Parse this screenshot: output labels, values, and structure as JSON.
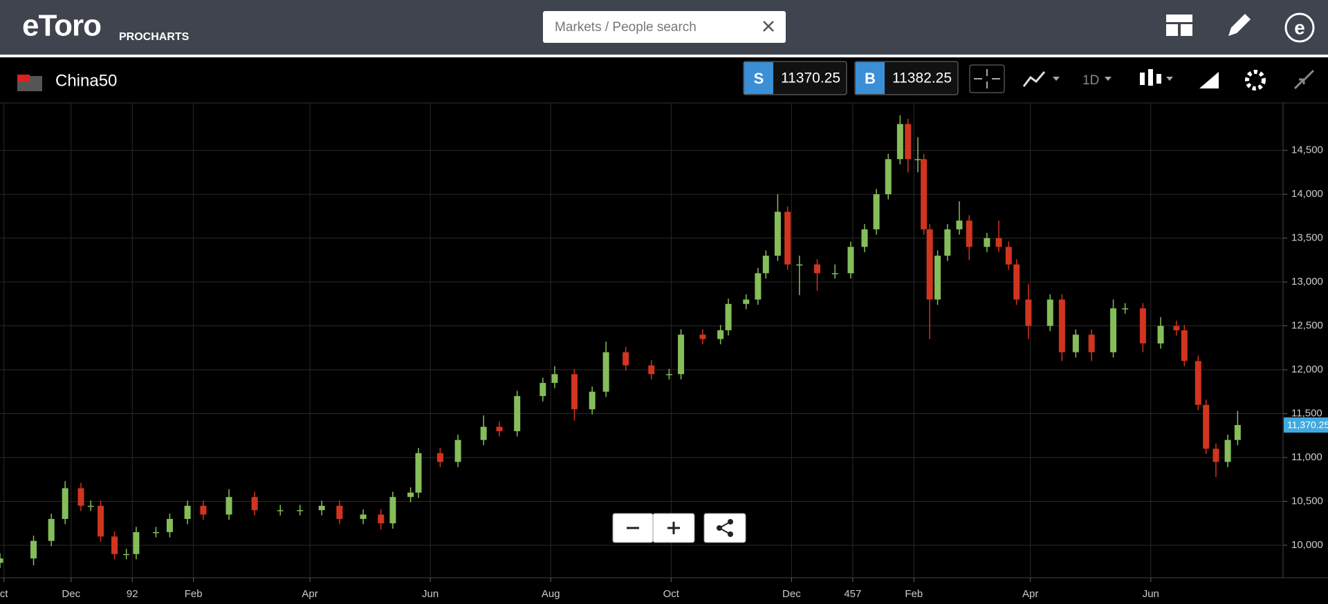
{
  "header": {
    "logo": "eToro",
    "product": "PROCHARTS",
    "search_placeholder": "Markets / People search"
  },
  "toolbar": {
    "instrument": "China50",
    "sell_label": "S",
    "sell_price": "11370.25",
    "buy_label": "B",
    "buy_price": "11382.25",
    "interval": "1D"
  },
  "chart_data": {
    "type": "candlestick",
    "x": [
      25,
      42,
      51,
      58,
      66,
      71,
      76,
      83,
      89,
      94,
      104,
      111,
      120,
      128,
      141,
      154,
      167,
      177,
      188,
      197,
      209,
      218,
      224,
      233,
      237,
      248,
      257,
      270,
      278,
      287,
      300,
      306,
      316,
      325,
      332,
      342,
      355,
      364,
      370,
      381,
      390,
      394,
      403,
      409,
      413,
      419,
      424,
      430,
      439,
      448,
      456,
      463,
      469,
      475,
      481,
      485,
      490,
      493,
      496,
      500,
      505,
      511,
      516,
      525,
      531,
      536,
      540,
      546,
      557,
      563,
      570,
      578,
      589,
      595,
      604,
      613,
      621,
      625,
      632,
      636,
      641,
      647,
      652
    ],
    "open": [
      9800,
      9850,
      10050,
      10300,
      10650,
      10450,
      10450,
      10100,
      9900,
      9900,
      10150,
      10150,
      10300,
      10450,
      10350,
      10550,
      10400,
      10400,
      10400,
      10450,
      10300,
      10350,
      10250,
      10550,
      10600,
      11050,
      10950,
      11200,
      11350,
      11300,
      11700,
      11850,
      11950,
      11550,
      11750,
      12200,
      12050,
      11950,
      11950,
      12400,
      12350,
      12450,
      12750,
      12800,
      13100,
      13300,
      13800,
      13200,
      13200,
      13100,
      13100,
      13400,
      13600,
      14000,
      14400,
      14800,
      14400,
      14400,
      13600,
      12800,
      13300,
      13600,
      13700,
      13400,
      13500,
      13400,
      13200,
      12800,
      12500,
      12800,
      12200,
      12400,
      12200,
      12700,
      12700,
      12300,
      12500,
      12450,
      12100,
      11600,
      11100,
      10950,
      11200
    ],
    "high": [
      9910,
      10110,
      10360,
      10730,
      10710,
      10510,
      10510,
      10160,
      9960,
      10210,
      10210,
      10360,
      10510,
      10510,
      10640,
      10610,
      10460,
      10460,
      10510,
      10510,
      10410,
      10410,
      10610,
      10660,
      11110,
      11110,
      11260,
      11480,
      11410,
      11760,
      11910,
      12040,
      12010,
      11810,
      12320,
      12260,
      12110,
      12010,
      12460,
      12460,
      12510,
      12810,
      12860,
      13160,
      13360,
      14000,
      13860,
      13300,
      13260,
      13200,
      13460,
      13660,
      14060,
      14460,
      14900,
      14860,
      14650,
      14460,
      13660,
      13360,
      13660,
      13920,
      13760,
      13560,
      13700,
      13460,
      13260,
      12980,
      12860,
      12860,
      12460,
      12460,
      12800,
      12760,
      12760,
      12600,
      12560,
      12510,
      12160,
      11660,
      11160,
      11260,
      11530
    ],
    "low": [
      9740,
      9770,
      9990,
      10240,
      10390,
      10390,
      10040,
      9840,
      9840,
      9840,
      10090,
      10090,
      10240,
      10290,
      10290,
      10340,
      10340,
      10340,
      10340,
      10240,
      10240,
      10180,
      10190,
      10490,
      10540,
      10890,
      10890,
      11140,
      11240,
      11240,
      11640,
      11790,
      11420,
      11490,
      11690,
      11990,
      11890,
      11890,
      11890,
      12290,
      12290,
      12390,
      12690,
      12740,
      13040,
      13240,
      13140,
      12850,
      12900,
      13040,
      13040,
      13340,
      13540,
      13940,
      14340,
      14250,
      14250,
      13540,
      12350,
      12740,
      13240,
      13540,
      13250,
      13340,
      13340,
      13140,
      12740,
      12350,
      12440,
      12100,
      12140,
      12100,
      12140,
      12640,
      12200,
      12240,
      12390,
      12040,
      11540,
      11040,
      10780,
      10890,
      11140
    ],
    "close": [
      9850,
      10050,
      10300,
      10650,
      10450,
      10450,
      10100,
      9900,
      9900,
      10150,
      10150,
      10300,
      10450,
      10350,
      10550,
      10400,
      10400,
      10400,
      10450,
      10300,
      10350,
      10250,
      10550,
      10600,
      11050,
      10950,
      11200,
      11350,
      11300,
      11700,
      11850,
      11950,
      11550,
      11750,
      12200,
      12050,
      11950,
      11950,
      12400,
      12350,
      12450,
      12750,
      12800,
      13100,
      13300,
      13800,
      13200,
      13200,
      13100,
      13100,
      13400,
      13600,
      14000,
      14400,
      14800,
      14400,
      14400,
      13600,
      12800,
      13300,
      13600,
      13700,
      13400,
      13500,
      13400,
      13200,
      12800,
      12500,
      12800,
      12200,
      12400,
      12200,
      12700,
      12700,
      12300,
      12500,
      12450,
      12100,
      11600,
      11100,
      10950,
      11200,
      11370
    ],
    "up_color": "#86bd5b",
    "down_color": "#d1341f",
    "xlim": [
      25,
      675
    ],
    "xticks": [
      {
        "value": 27,
        "label": "ct"
      },
      {
        "value": 61,
        "label": "Dec"
      },
      92,
      {
        "value": 123,
        "label": "Feb"
      },
      {
        "value": 182,
        "label": "Apr"
      },
      {
        "value": 243,
        "label": "Jun"
      },
      {
        "value": 304,
        "label": "Aug"
      },
      {
        "value": 365,
        "label": "Oct"
      },
      {
        "value": 426,
        "label": "Dec"
      },
      457,
      {
        "value": 488,
        "label": "Feb"
      },
      {
        "value": 547,
        "label": "Apr"
      },
      {
        "value": 608,
        "label": "Jun"
      }
    ],
    "ylim": [
      9630,
      15040
    ],
    "yticks": [
      {
        "value": 10000,
        "label": "10,000"
      },
      {
        "value": 10500,
        "label": "10,500"
      },
      {
        "value": 11000,
        "label": "11,000"
      },
      {
        "value": 11500,
        "label": "11,500"
      },
      {
        "value": 12000,
        "label": "12,000"
      },
      {
        "value": 12500,
        "label": "12,500"
      },
      {
        "value": 13000,
        "label": "13,000"
      },
      {
        "value": 13500,
        "label": "13,500"
      },
      {
        "value": 14000,
        "label": "14,000"
      },
      {
        "value": 14500,
        "label": "14,500"
      }
    ],
    "current_price": {
      "value": 11370.25,
      "label": "11,370.25"
    },
    "grid": true
  }
}
